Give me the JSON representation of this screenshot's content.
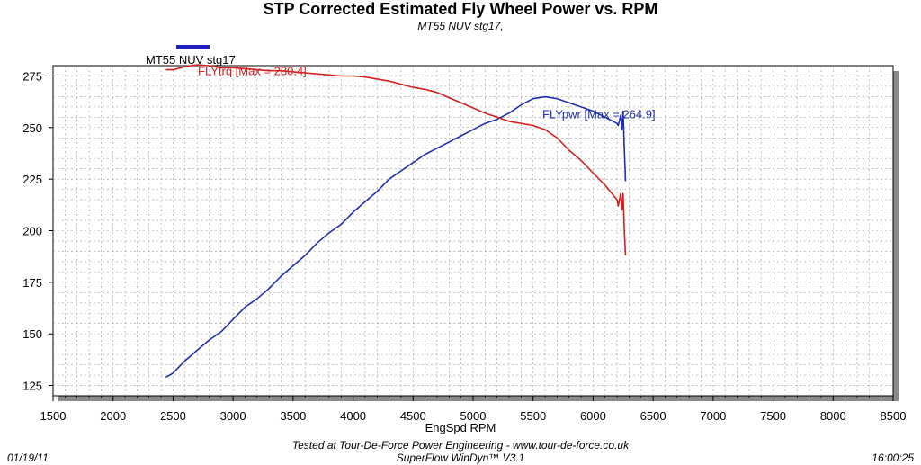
{
  "chart_data": {
    "type": "line",
    "title": "STP Corrected Estimated Fly Wheel Power vs. RPM",
    "subtitle": "MT55 NUV stg17,",
    "xlabel": "EngSpd RPM",
    "ylabel": "",
    "xlim": [
      1500,
      8500
    ],
    "ylim": [
      120,
      280
    ],
    "x_ticks": [
      1500,
      2000,
      2500,
      3000,
      3500,
      4000,
      4500,
      5000,
      5500,
      6000,
      6500,
      7000,
      7500,
      8000,
      8500
    ],
    "y_ticks": [
      125,
      150,
      175,
      200,
      225,
      250,
      275
    ],
    "grid": true,
    "legend": [
      {
        "label": "MT55 NUV stg17",
        "color": "#1f1fbf"
      }
    ],
    "series": [
      {
        "name": "FLYpwr",
        "color": "#1f2fb0",
        "annotation": "FLYpwr [Max = 264.9]",
        "x": [
          2440,
          2500,
          2600,
          2700,
          2800,
          2900,
          3000,
          3100,
          3200,
          3300,
          3400,
          3500,
          3600,
          3700,
          3800,
          3900,
          4000,
          4100,
          4200,
          4300,
          4400,
          4500,
          4600,
          4700,
          4800,
          4900,
          5000,
          5100,
          5200,
          5300,
          5400,
          5500,
          5600,
          5700,
          5800,
          5900,
          6000,
          6100,
          6200,
          6210,
          6230,
          6240,
          6250,
          6260,
          6270
        ],
        "y": [
          129,
          131,
          137,
          142,
          147,
          151,
          157,
          163,
          167,
          172,
          178,
          183,
          188,
          194,
          199,
          203,
          209,
          214,
          219,
          225,
          229,
          233,
          237,
          240,
          243,
          246,
          249,
          252,
          254,
          257,
          261,
          264,
          264.9,
          264,
          262,
          260,
          258,
          255,
          252,
          251,
          256,
          249,
          258,
          240,
          224
        ]
      },
      {
        "name": "FLYtrq",
        "color": "#d42020",
        "annotation": "FLYtrq [Max = 280.4]",
        "x": [
          2440,
          2500,
          2600,
          2700,
          2800,
          2900,
          3000,
          3100,
          3200,
          3300,
          3400,
          3500,
          3600,
          3700,
          3800,
          3900,
          4000,
          4100,
          4200,
          4300,
          4400,
          4500,
          4600,
          4700,
          4800,
          4900,
          5000,
          5100,
          5200,
          5300,
          5400,
          5500,
          5600,
          5700,
          5800,
          5900,
          6000,
          6100,
          6200,
          6210,
          6230,
          6240,
          6250,
          6260,
          6270
        ],
        "y": [
          278,
          278,
          279.5,
          280.4,
          280,
          279,
          279,
          278.5,
          278,
          277.5,
          277.5,
          277,
          276.5,
          276,
          275.5,
          275,
          275,
          274.5,
          273.5,
          272.5,
          271,
          269.5,
          268.5,
          267,
          264.5,
          262,
          259.5,
          257,
          255,
          253,
          252,
          251,
          249,
          245,
          239,
          234,
          228,
          222,
          215,
          212,
          218,
          210,
          218,
          200,
          188
        ]
      }
    ]
  },
  "footer": {
    "tested_at": "Tested at Tour-De-Force Power Engineering - www.tour-de-force.co.uk",
    "software": "SuperFlow WinDyn™  V3.1",
    "date": "01/19/11",
    "time": "16:00:25"
  }
}
